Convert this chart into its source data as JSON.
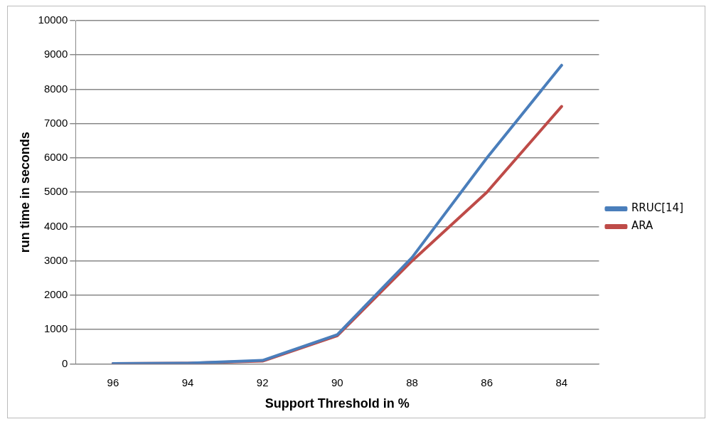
{
  "chart_data": {
    "type": "line",
    "xlabel": "Support Threshold in %",
    "ylabel": "run time in seconds",
    "categories": [
      "96",
      "94",
      "92",
      "90",
      "88",
      "86",
      "84"
    ],
    "series": [
      {
        "name": "RRUC[14]",
        "color": "#4a7ebb",
        "values": [
          10,
          20,
          100,
          850,
          3100,
          6000,
          8700
        ]
      },
      {
        "name": "ARA",
        "color": "#be4b48",
        "values": [
          10,
          20,
          80,
          820,
          3000,
          5000,
          7500
        ]
      }
    ],
    "ylim": [
      0,
      10000
    ],
    "yticks": [
      0,
      1000,
      2000,
      3000,
      4000,
      5000,
      6000,
      7000,
      8000,
      9000,
      10000
    ],
    "grid": "y",
    "legend": "right",
    "marker": "none",
    "line_style": "solid"
  }
}
